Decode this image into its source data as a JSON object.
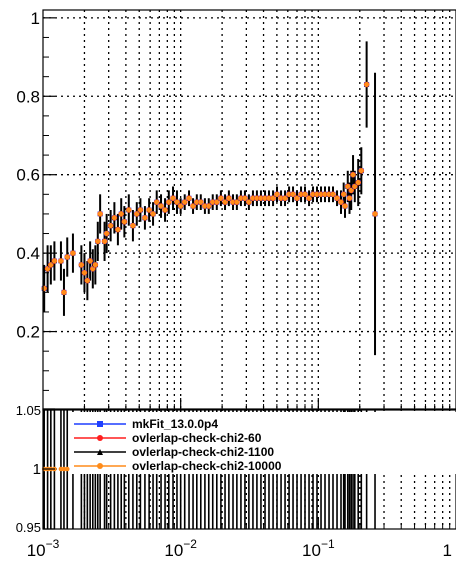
{
  "chart_data": [
    {
      "type": "scatter",
      "title": "",
      "xlabel": "",
      "ylabel": "",
      "x_scale": "log",
      "xlim": [
        0.001,
        1
      ],
      "ylim": [
        0,
        1.02
      ],
      "grid": true,
      "y_ticks": [
        {
          "value": 0,
          "label": "0"
        },
        {
          "value": 0.2,
          "label": "0.2"
        },
        {
          "value": 0.4,
          "label": "0.4"
        },
        {
          "value": 0.6,
          "label": "0.6"
        },
        {
          "value": 0.8,
          "label": "0.8"
        },
        {
          "value": 1,
          "label": "1"
        }
      ],
      "series": [
        {
          "name": "mkFit_13.0.0p4",
          "color": "#1f3fff",
          "marker": "square",
          "points": [
            {
              "x": 0.00102,
              "y": 0.31,
              "err": 0.06
            },
            {
              "x": 0.00108,
              "y": 0.36,
              "err": 0.06
            },
            {
              "x": 0.00114,
              "y": 0.37,
              "err": 0.05
            },
            {
              "x": 0.00121,
              "y": 0.38,
              "err": 0.05
            },
            {
              "x": 0.00135,
              "y": 0.38,
              "err": 0.05
            },
            {
              "x": 0.00142,
              "y": 0.3,
              "err": 0.06
            },
            {
              "x": 0.0015,
              "y": 0.39,
              "err": 0.05
            },
            {
              "x": 0.00165,
              "y": 0.4,
              "err": 0.05
            },
            {
              "x": 0.0019,
              "y": 0.37,
              "err": 0.05
            },
            {
              "x": 0.002,
              "y": 0.35,
              "err": 0.05
            },
            {
              "x": 0.0021,
              "y": 0.33,
              "err": 0.05
            },
            {
              "x": 0.0022,
              "y": 0.38,
              "err": 0.05
            },
            {
              "x": 0.0023,
              "y": 0.36,
              "err": 0.05
            },
            {
              "x": 0.0024,
              "y": 0.37,
              "err": 0.05
            },
            {
              "x": 0.0025,
              "y": 0.43,
              "err": 0.05
            },
            {
              "x": 0.0026,
              "y": 0.5,
              "err": 0.05
            },
            {
              "x": 0.0028,
              "y": 0.43,
              "err": 0.05
            },
            {
              "x": 0.0029,
              "y": 0.45,
              "err": 0.05
            },
            {
              "x": 0.0031,
              "y": 0.47,
              "err": 0.04
            },
            {
              "x": 0.0033,
              "y": 0.49,
              "err": 0.04
            },
            {
              "x": 0.0035,
              "y": 0.46,
              "err": 0.04
            },
            {
              "x": 0.0037,
              "y": 0.5,
              "err": 0.04
            },
            {
              "x": 0.0039,
              "y": 0.48,
              "err": 0.04
            },
            {
              "x": 0.0042,
              "y": 0.51,
              "err": 0.04
            },
            {
              "x": 0.0045,
              "y": 0.47,
              "err": 0.04
            },
            {
              "x": 0.0048,
              "y": 0.5,
              "err": 0.03
            },
            {
              "x": 0.0051,
              "y": 0.51,
              "err": 0.03
            },
            {
              "x": 0.0055,
              "y": 0.49,
              "err": 0.03
            },
            {
              "x": 0.0059,
              "y": 0.51,
              "err": 0.03
            },
            {
              "x": 0.0063,
              "y": 0.5,
              "err": 0.03
            },
            {
              "x": 0.0067,
              "y": 0.53,
              "err": 0.03
            },
            {
              "x": 0.0072,
              "y": 0.52,
              "err": 0.03
            },
            {
              "x": 0.0077,
              "y": 0.51,
              "err": 0.03
            },
            {
              "x": 0.0082,
              "y": 0.53,
              "err": 0.03
            },
            {
              "x": 0.0088,
              "y": 0.54,
              "err": 0.03
            },
            {
              "x": 0.0094,
              "y": 0.53,
              "err": 0.03
            },
            {
              "x": 0.01,
              "y": 0.52,
              "err": 0.02
            },
            {
              "x": 0.0107,
              "y": 0.53,
              "err": 0.02
            },
            {
              "x": 0.0115,
              "y": 0.54,
              "err": 0.02
            },
            {
              "x": 0.0123,
              "y": 0.52,
              "err": 0.02
            },
            {
              "x": 0.0131,
              "y": 0.53,
              "err": 0.02
            },
            {
              "x": 0.014,
              "y": 0.53,
              "err": 0.02
            },
            {
              "x": 0.015,
              "y": 0.52,
              "err": 0.02
            },
            {
              "x": 0.016,
              "y": 0.52,
              "err": 0.02
            },
            {
              "x": 0.0171,
              "y": 0.53,
              "err": 0.02
            },
            {
              "x": 0.0183,
              "y": 0.53,
              "err": 0.02
            },
            {
              "x": 0.0196,
              "y": 0.54,
              "err": 0.02
            },
            {
              "x": 0.021,
              "y": 0.53,
              "err": 0.02
            },
            {
              "x": 0.0224,
              "y": 0.54,
              "err": 0.02
            },
            {
              "x": 0.024,
              "y": 0.53,
              "err": 0.02
            },
            {
              "x": 0.0256,
              "y": 0.53,
              "err": 0.02
            },
            {
              "x": 0.0274,
              "y": 0.54,
              "err": 0.02
            },
            {
              "x": 0.0293,
              "y": 0.54,
              "err": 0.02
            },
            {
              "x": 0.0313,
              "y": 0.53,
              "err": 0.02
            },
            {
              "x": 0.0335,
              "y": 0.54,
              "err": 0.02
            },
            {
              "x": 0.0358,
              "y": 0.54,
              "err": 0.02
            },
            {
              "x": 0.0383,
              "y": 0.54,
              "err": 0.02
            },
            {
              "x": 0.041,
              "y": 0.54,
              "err": 0.02
            },
            {
              "x": 0.0438,
              "y": 0.54,
              "err": 0.02
            },
            {
              "x": 0.0469,
              "y": 0.54,
              "err": 0.02
            },
            {
              "x": 0.0501,
              "y": 0.55,
              "err": 0.02
            },
            {
              "x": 0.0536,
              "y": 0.54,
              "err": 0.02
            },
            {
              "x": 0.0573,
              "y": 0.54,
              "err": 0.02
            },
            {
              "x": 0.0613,
              "y": 0.55,
              "err": 0.02
            },
            {
              "x": 0.0655,
              "y": 0.55,
              "err": 0.02
            },
            {
              "x": 0.07,
              "y": 0.54,
              "err": 0.02
            },
            {
              "x": 0.0749,
              "y": 0.55,
              "err": 0.02
            },
            {
              "x": 0.08,
              "y": 0.55,
              "err": 0.02
            },
            {
              "x": 0.0856,
              "y": 0.54,
              "err": 0.02
            },
            {
              "x": 0.0915,
              "y": 0.55,
              "err": 0.02
            },
            {
              "x": 0.0978,
              "y": 0.55,
              "err": 0.02
            },
            {
              "x": 0.1046,
              "y": 0.55,
              "err": 0.02
            },
            {
              "x": 0.1118,
              "y": 0.55,
              "err": 0.02
            },
            {
              "x": 0.1196,
              "y": 0.55,
              "err": 0.02
            },
            {
              "x": 0.1278,
              "y": 0.55,
              "err": 0.02
            },
            {
              "x": 0.1367,
              "y": 0.54,
              "err": 0.02
            },
            {
              "x": 0.1461,
              "y": 0.53,
              "err": 0.03
            },
            {
              "x": 0.1528,
              "y": 0.55,
              "err": 0.03
            },
            {
              "x": 0.1562,
              "y": 0.52,
              "err": 0.03
            },
            {
              "x": 0.1636,
              "y": 0.57,
              "err": 0.04
            },
            {
              "x": 0.1684,
              "y": 0.54,
              "err": 0.04
            },
            {
              "x": 0.1733,
              "y": 0.56,
              "err": 0.05
            },
            {
              "x": 0.1787,
              "y": 0.6,
              "err": 0.05
            },
            {
              "x": 0.184,
              "y": 0.57,
              "err": 0.04
            },
            {
              "x": 0.1948,
              "y": 0.58,
              "err": 0.06
            },
            {
              "x": 0.2052,
              "y": 0.61,
              "err": 0.06
            },
            {
              "x": 0.2243,
              "y": 0.83,
              "err": 0.11
            },
            {
              "x": 0.2581,
              "y": 0.5,
              "err": 0.36
            }
          ]
        },
        {
          "name": "ovlerlap-check-chi2-60",
          "color": "#ff1f1f",
          "marker": "circle",
          "same_as": "mkFit_13.0.0p4"
        },
        {
          "name": "ovlerlap-check-chi2-1100",
          "color": "#000000",
          "marker": "triangle",
          "same_as": "mkFit_13.0.0p4"
        },
        {
          "name": "ovlerlap-check-chi2-10000",
          "color": "#ff8c1a",
          "marker": "circle",
          "same_as": "mkFit_13.0.0p4"
        }
      ]
    },
    {
      "type": "scatter",
      "title": "",
      "xlabel": "",
      "ylabel": "",
      "x_scale": "log",
      "xlim": [
        0.001,
        1
      ],
      "ylim": [
        0.95,
        1.05
      ],
      "grid": true,
      "y_ticks": [
        {
          "value": 0.95,
          "label": "0.95"
        },
        {
          "value": 1,
          "label": "1"
        },
        {
          "value": 1.05,
          "label": "1.05"
        }
      ],
      "x_ticks": [
        {
          "value": 0.001,
          "base": "10",
          "exp": "−3"
        },
        {
          "value": 0.01,
          "base": "10",
          "exp": "−2"
        },
        {
          "value": 0.1,
          "base": "10",
          "exp": "−1"
        },
        {
          "value": 1,
          "base": "1",
          "exp": ""
        }
      ],
      "ratio_value": 1,
      "legend": {
        "position": "top-right",
        "entries": [
          {
            "label": "mkFit_13.0.0p4",
            "color": "#1f3fff",
            "marker": "square"
          },
          {
            "label": "ovlerlap-check-chi2-60",
            "color": "#ff1f1f",
            "marker": "circle"
          },
          {
            "label": "ovlerlap-check-chi2-1100",
            "color": "#000000",
            "marker": "triangle"
          },
          {
            "label": "ovlerlap-check-chi2-10000",
            "color": "#ff8c1a",
            "marker": "circle"
          }
        ]
      }
    }
  ]
}
